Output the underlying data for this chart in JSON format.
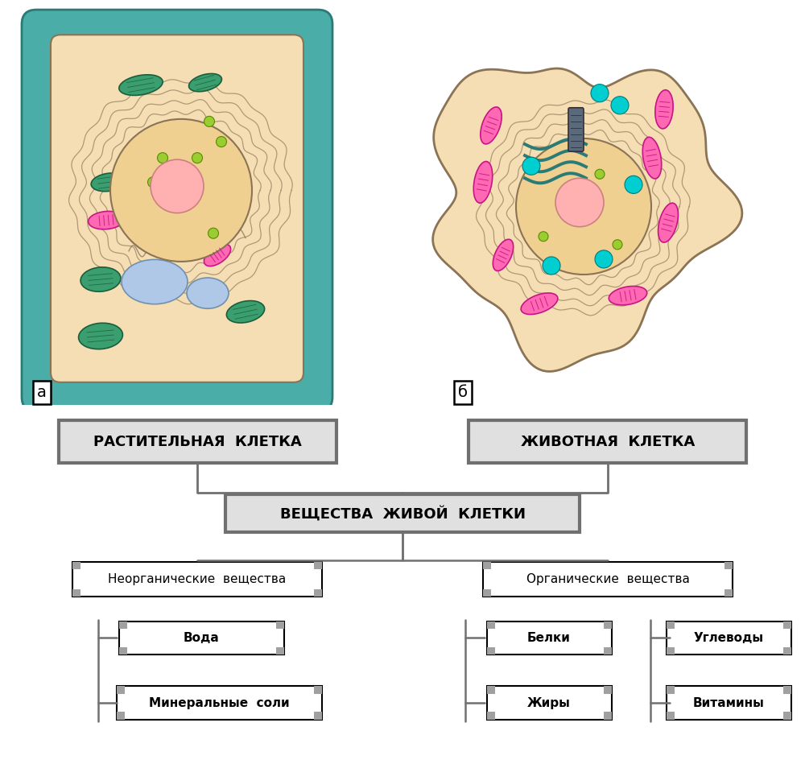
{
  "bg_color": "#ffffff",
  "label_a": "а",
  "label_b": "б",
  "diagram": {
    "box_rasit": "РАСТИТЕЛЬНАЯ  КЛЕТКА",
    "box_zhivot": "ЖИВОТНАЯ  КЛЕТКА",
    "box_vesh": "ВЕЩЕСТВА  ЖИВОЙ  КЛЕТКИ",
    "box_neorg": "Неорганические  вещества",
    "box_org": "Органические  вещества",
    "box_voda": "Вода",
    "box_minsol": "Минеральные  соли",
    "box_belki": "Белки",
    "box_zhiry": "Жиры",
    "box_uglevody": "Углеводы",
    "box_vitaminy": "Витамины"
  },
  "colors": {
    "cell_bg": "#F5DEB3",
    "plant_wall": "#4AADA8",
    "chloroplast_fill": "#3a9e6e",
    "chloroplast_edge": "#1a5e3e",
    "vacuole_fill": "#b0c8e8",
    "vacuole_edge": "#7090b0",
    "mitochondria_fill": "#FF69B4",
    "mitochondria_border": "#C71585",
    "nucleus_fill": "#f0d090",
    "nucleus_edge": "#8B7355",
    "nucleolus_fill": "#ffb0b0",
    "nucleolus_edge": "#cc8080",
    "er_color": "#8B7355",
    "ribosome_fill": "#9ACD32",
    "ribosome_edge": "#5a8a00",
    "centriole_fill": "#708090",
    "lysosome_fill": "#00CED1",
    "lysosome_edge": "#007a7a",
    "golgi_color": "#2a7a75",
    "box_fill_top": "#e0e0e0",
    "box_border_top": "#707070",
    "box_fill_white": "#ffffff",
    "box_border_black": "#000000",
    "connector_color": "#707070",
    "corner_color": "#a0a0a0"
  }
}
